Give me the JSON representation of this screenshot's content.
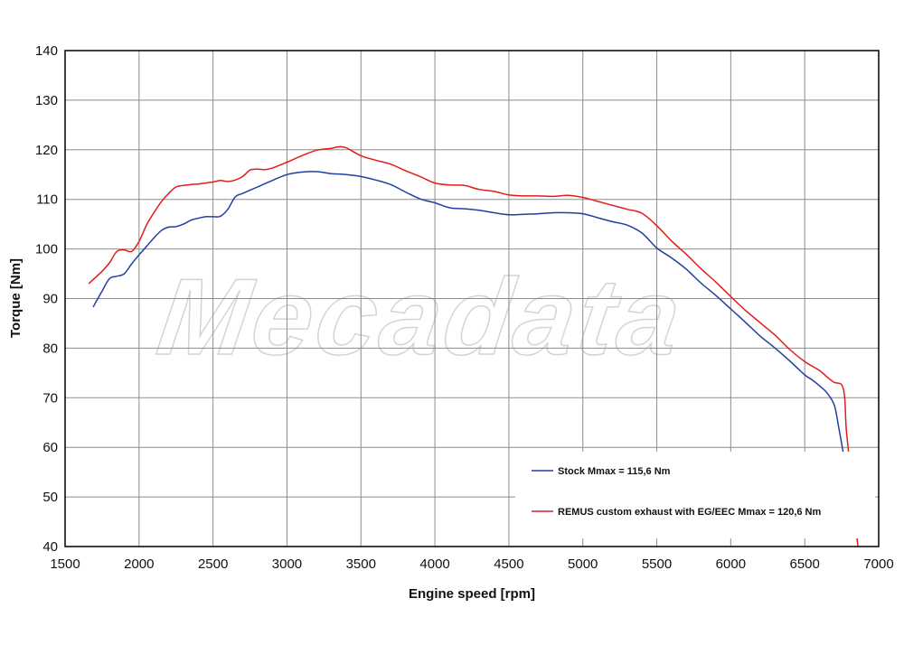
{
  "chart_data": {
    "type": "line",
    "xlabel": "Engine speed [rpm]",
    "ylabel": "Torque [Nm]",
    "xlim": [
      1500,
      7000
    ],
    "ylim": [
      40,
      140
    ],
    "xticks": [
      1500,
      2000,
      2500,
      3000,
      3500,
      4000,
      4500,
      5000,
      5500,
      6000,
      6500,
      7000
    ],
    "yticks": [
      40,
      50,
      60,
      70,
      80,
      90,
      100,
      110,
      120,
      130,
      140
    ],
    "grid": true,
    "legend_position": "bottom-right",
    "watermark": "Mecadata",
    "series": [
      {
        "name": "Stock Mmax = 115,6 Nm",
        "color": "#1f3fa0",
        "x": [
          1690,
          1750,
          1800,
          1850,
          1900,
          1950,
          2000,
          2050,
          2100,
          2150,
          2200,
          2250,
          2300,
          2350,
          2400,
          2450,
          2500,
          2550,
          2600,
          2650,
          2700,
          2800,
          2900,
          3000,
          3100,
          3200,
          3300,
          3400,
          3500,
          3600,
          3700,
          3800,
          3900,
          4000,
          4100,
          4200,
          4300,
          4400,
          4500,
          4600,
          4700,
          4800,
          4900,
          5000,
          5100,
          5200,
          5300,
          5400,
          5500,
          5600,
          5700,
          5800,
          5900,
          6000,
          6100,
          6200,
          6300,
          6400,
          6500,
          6550,
          6600,
          6650,
          6700,
          6730,
          6760
        ],
        "y": [
          88.3,
          91.5,
          94.0,
          94.5,
          95.0,
          97.0,
          98.8,
          100.5,
          102.2,
          103.7,
          104.4,
          104.5,
          105.0,
          105.8,
          106.2,
          106.5,
          106.5,
          106.6,
          108.0,
          110.5,
          111.2,
          112.5,
          113.8,
          115.0,
          115.5,
          115.6,
          115.2,
          115.0,
          114.6,
          113.9,
          113.0,
          111.5,
          110.1,
          109.3,
          108.3,
          108.1,
          107.8,
          107.3,
          106.9,
          107.0,
          107.1,
          107.3,
          107.3,
          107.1,
          106.3,
          105.5,
          104.8,
          103.2,
          100.2,
          98.2,
          95.9,
          93.1,
          90.6,
          87.9,
          85.2,
          82.4,
          80.0,
          77.4,
          74.6,
          73.6,
          72.4,
          71.0,
          68.5,
          64.0,
          59.0
        ]
      },
      {
        "name": "REMUS custom exhaust with EG/EEC Mmax = 120,6 Nm",
        "color": "#e41a1c",
        "x": [
          1660,
          1750,
          1800,
          1850,
          1900,
          1950,
          2000,
          2050,
          2100,
          2150,
          2200,
          2250,
          2300,
          2350,
          2400,
          2450,
          2500,
          2550,
          2600,
          2650,
          2700,
          2750,
          2800,
          2850,
          2900,
          3000,
          3100,
          3200,
          3300,
          3350,
          3400,
          3500,
          3600,
          3700,
          3800,
          3900,
          4000,
          4100,
          4200,
          4300,
          4400,
          4500,
          4600,
          4700,
          4800,
          4900,
          5000,
          5100,
          5200,
          5300,
          5400,
          5500,
          5600,
          5700,
          5800,
          5900,
          6000,
          6100,
          6200,
          6300,
          6400,
          6500,
          6600,
          6650,
          6700,
          6750,
          6770,
          6780,
          6800,
          6820,
          6840,
          6860
        ],
        "y": [
          93.0,
          95.5,
          97.2,
          99.5,
          99.8,
          99.5,
          101.5,
          104.8,
          107.3,
          109.5,
          111.2,
          112.5,
          112.8,
          113.0,
          113.1,
          113.3,
          113.5,
          113.8,
          113.6,
          113.9,
          114.6,
          115.9,
          116.1,
          116.0,
          116.3,
          117.5,
          118.8,
          119.9,
          120.3,
          120.6,
          120.4,
          118.8,
          117.9,
          117.1,
          115.8,
          114.6,
          113.3,
          112.9,
          112.8,
          112.0,
          111.6,
          110.9,
          110.7,
          110.7,
          110.6,
          110.8,
          110.4,
          109.6,
          108.8,
          108.0,
          107.2,
          104.7,
          101.6,
          98.9,
          96.0,
          93.3,
          90.4,
          87.6,
          85.1,
          82.6,
          79.7,
          77.3,
          75.5,
          74.2,
          73.1,
          72.6,
          70.0,
          64.0,
          58.0,
          52.0,
          45.0,
          40.0
        ]
      }
    ]
  }
}
